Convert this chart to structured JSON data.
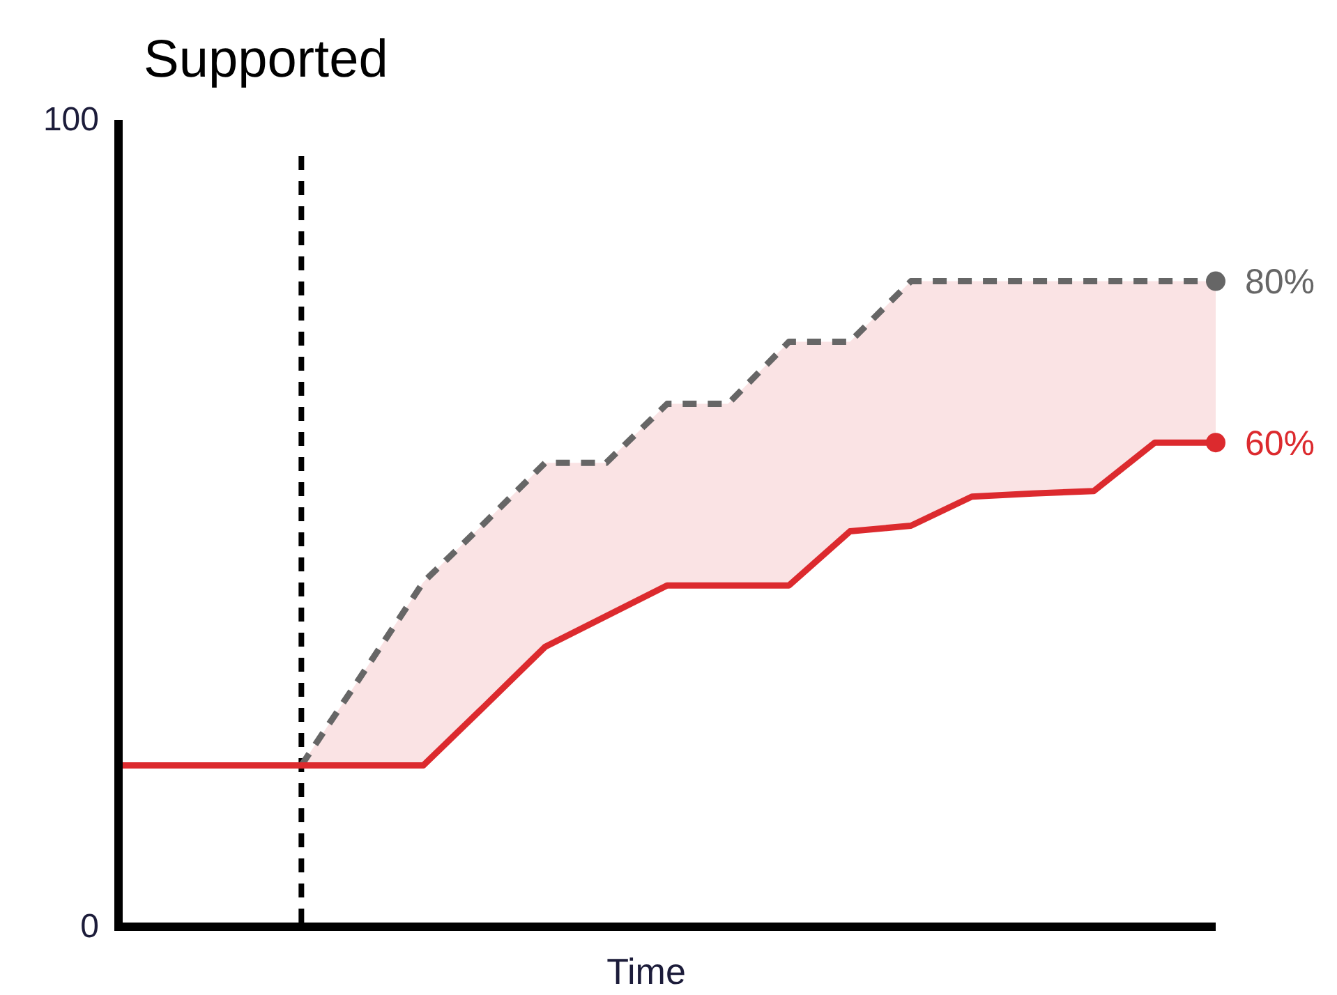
{
  "chart_data": {
    "type": "line",
    "title": "Supported",
    "xlabel": "Time",
    "categories": [
      null,
      null,
      null,
      null,
      null,
      null,
      null,
      null,
      null,
      null,
      null,
      null,
      null,
      null,
      null,
      null,
      null,
      null,
      null
    ],
    "series": [
      {
        "color": "#666666",
        "line_style": "dashed",
        "values": [
          null,
          null,
          null,
          20,
          31.3,
          42.7,
          50,
          57.5,
          57.5,
          64.8,
          64.8,
          72.5,
          72.5,
          80,
          80,
          80,
          80,
          80,
          80
        ],
        "value_labels": [
          null,
          null,
          null,
          null,
          null,
          null,
          null,
          null,
          null,
          null,
          null,
          null,
          null,
          null,
          null,
          null,
          null,
          null,
          "80%"
        ]
      },
      {
        "color": "#dc2a2e",
        "line_style": "solid",
        "values": [
          20,
          20,
          20,
          20,
          20,
          20,
          27.3,
          34.7,
          38.5,
          42.3,
          42.3,
          42.3,
          49,
          49.7,
          53.3,
          53.7,
          54,
          60,
          60
        ],
        "lower": [
          null,
          null,
          null,
          20,
          20,
          20,
          27.3,
          34.7,
          38.5,
          42.3,
          42.3,
          42.3,
          49,
          49.7,
          53.3,
          53.7,
          54,
          60,
          60
        ],
        "upper": [
          null,
          null,
          null,
          20,
          31.3,
          42.7,
          50,
          57.5,
          57.5,
          64.8,
          64.8,
          72.5,
          72.5,
          80,
          80,
          80,
          80,
          80,
          80
        ],
        "value_labels": [
          null,
          null,
          null,
          null,
          null,
          null,
          null,
          null,
          null,
          null,
          null,
          null,
          null,
          null,
          null,
          null,
          null,
          null,
          "60%"
        ]
      }
    ],
    "ylim": [
      0,
      100
    ],
    "yticks": [
      0,
      100
    ],
    "grid": false
  }
}
